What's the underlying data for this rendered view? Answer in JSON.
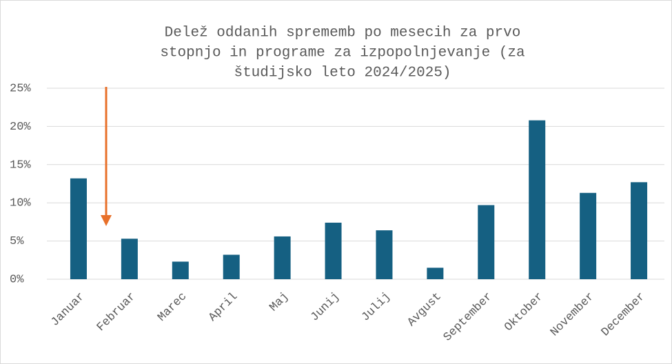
{
  "chart_data": {
    "type": "bar",
    "title": [
      "Delež oddanih sprememb po mesecih za prvo",
      "stopnjo in programe za izpopolnjevanje (za",
      "študijsko leto 2024/2025)"
    ],
    "categories": [
      "Januar",
      "Februar",
      "Marec",
      "April",
      "Maj",
      "Junij",
      "Julij",
      "Avgust",
      "September",
      "Oktober",
      "November",
      "December"
    ],
    "values": [
      13.2,
      5.3,
      2.3,
      3.2,
      5.6,
      7.4,
      6.4,
      1.5,
      9.7,
      20.8,
      11.3,
      12.7
    ],
    "color": "#156082",
    "ylim": [
      0,
      25
    ],
    "yticks": [
      {
        "value": 0,
        "label": "0%"
      },
      {
        "value": 5,
        "label": "5%"
      },
      {
        "value": 10,
        "label": "10%"
      },
      {
        "value": 15,
        "label": "15%"
      },
      {
        "value": 20,
        "label": "20%"
      },
      {
        "value": 25,
        "label": "25%"
      }
    ],
    "grid": true
  }
}
